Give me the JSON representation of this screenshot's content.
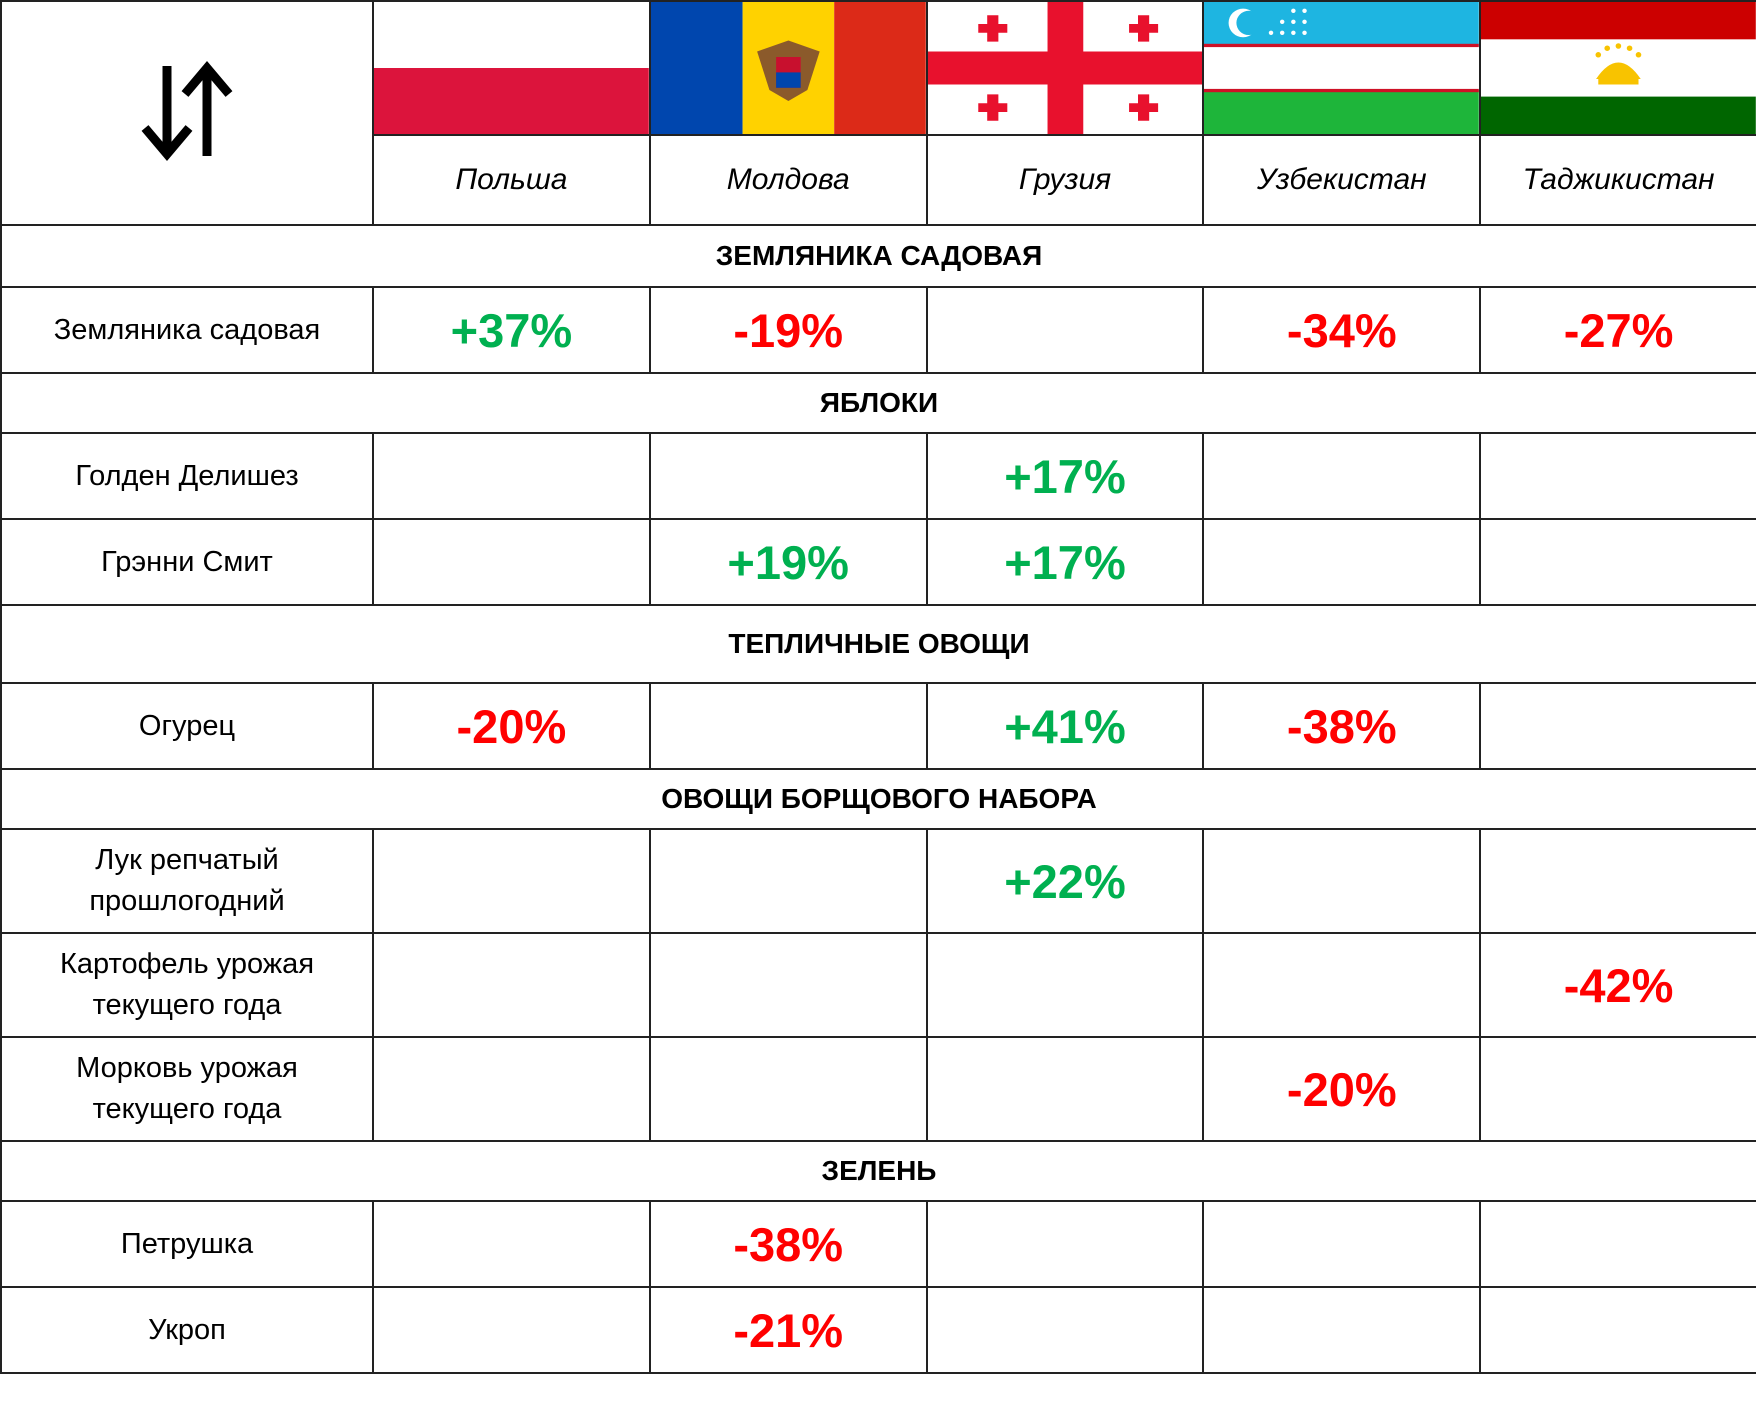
{
  "header": {
    "countries": [
      "Польша",
      "Молдова",
      "Грузия",
      "Узбекистан",
      "Таджикистан"
    ]
  },
  "sections": [
    {
      "title": "ЗЕМЛЯНИКА САДОВАЯ",
      "rows": [
        {
          "label": "Земляника садовая",
          "cells": [
            "+37%",
            "-19%",
            null,
            "-34%",
            "-27%"
          ]
        }
      ]
    },
    {
      "title": "ЯБЛОКИ",
      "rows": [
        {
          "label": "Голден Делишез",
          "cells": [
            null,
            null,
            "+17%",
            null,
            null
          ]
        },
        {
          "label": "Грэнни Смит",
          "cells": [
            null,
            "+19%",
            "+17%",
            null,
            null
          ]
        }
      ]
    },
    {
      "title": "ТЕПЛИЧНЫЕ ОВОЩИ",
      "rows": [
        {
          "label": "Огурец",
          "cells": [
            "-20%",
            null,
            "+41%",
            "-38%",
            null
          ]
        }
      ]
    },
    {
      "title": "ОВОЩИ БОРЩОВОГО НАБОРА",
      "rows": [
        {
          "label": "Лук репчатый прошлогодний",
          "cells": [
            null,
            null,
            "+22%",
            null,
            null
          ]
        },
        {
          "label": "Картофель урожая текущего года",
          "cells": [
            null,
            null,
            null,
            null,
            "-42%"
          ]
        },
        {
          "label": "Морковь урожая текущего года",
          "cells": [
            null,
            null,
            null,
            "-20%",
            null
          ]
        }
      ]
    },
    {
      "title": "ЗЕЛЕНЬ",
      "rows": [
        {
          "label": "Петрушка",
          "cells": [
            null,
            "-38%",
            null,
            null,
            null
          ]
        },
        {
          "label": "Укроп",
          "cells": [
            null,
            "-21%",
            null,
            null,
            null
          ]
        }
      ]
    }
  ]
}
